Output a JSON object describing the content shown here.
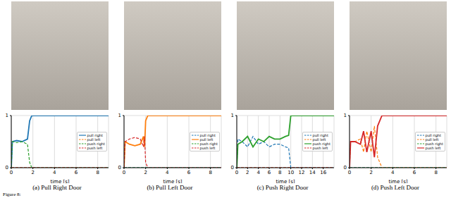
{
  "caption": "Figure 8:",
  "chart_data": [
    {
      "type": "line",
      "title": "(a) Pull Right Door",
      "x_label": "time [s]",
      "x": [
        0,
        0.1,
        0.5,
        1.0,
        1.5,
        1.7,
        1.9,
        2.5,
        9
      ],
      "series": [
        {
          "name": "pull right",
          "color": "#1f77b4",
          "line_style": "solid",
          "values": [
            0,
            0.5,
            0.52,
            0.5,
            0.55,
            0.9,
            1,
            1,
            1
          ]
        },
        {
          "name": "pull left",
          "color": "#ff7f0e",
          "line_style": "dashed",
          "values": [
            0,
            0,
            0,
            0,
            0,
            0,
            0,
            0,
            0
          ]
        },
        {
          "name": "push right",
          "color": "#2ca02c",
          "line_style": "dashed",
          "values": [
            0,
            0.5,
            0.48,
            0.5,
            0.45,
            0.1,
            0,
            0,
            0
          ]
        },
        {
          "name": "push left",
          "color": "#d62728",
          "line_style": "dashed",
          "values": [
            0,
            0,
            0,
            0,
            0,
            0,
            0,
            0,
            0
          ]
        }
      ],
      "xlim": [
        0,
        9
      ],
      "ylim": [
        0,
        1
      ],
      "xticks": [
        0,
        2,
        4,
        6,
        8
      ],
      "yticks": [
        0,
        1
      ],
      "grid": true,
      "legend": "right"
    },
    {
      "type": "line",
      "title": "(b) Pull Left Door",
      "x_label": "time [s]",
      "x": [
        0,
        0.1,
        0.5,
        1.0,
        1.5,
        1.8,
        1.9,
        2.0,
        2.2,
        9
      ],
      "series": [
        {
          "name": "pull right",
          "color": "#1f77b4",
          "line_style": "dashed",
          "values": [
            0,
            0,
            0,
            0,
            0,
            0,
            0,
            0,
            0,
            0
          ]
        },
        {
          "name": "pull left",
          "color": "#ff7f0e",
          "line_style": "solid",
          "values": [
            0,
            0.5,
            0.45,
            0.42,
            0.45,
            0.6,
            0.4,
            0.9,
            1,
            1
          ]
        },
        {
          "name": "push right",
          "color": "#2ca02c",
          "line_style": "dashed",
          "values": [
            0,
            0,
            0,
            0,
            0,
            0,
            0,
            0,
            0,
            0
          ]
        },
        {
          "name": "push left",
          "color": "#d62728",
          "line_style": "dashed",
          "values": [
            0,
            0.5,
            0.55,
            0.58,
            0.55,
            0.4,
            0.6,
            0.1,
            0,
            0
          ]
        }
      ],
      "xlim": [
        0,
        9
      ],
      "ylim": [
        0,
        1
      ],
      "xticks": [
        0,
        2,
        4,
        6,
        8
      ],
      "yticks": [
        0,
        1
      ],
      "grid": true,
      "legend": "right"
    },
    {
      "type": "line",
      "title": "(c) Push Right Door",
      "x_label": "time [s]",
      "x": [
        0,
        0.2,
        1,
        2,
        3,
        4,
        5,
        6,
        7,
        8,
        9,
        9.6,
        10,
        18
      ],
      "series": [
        {
          "name": "pull right",
          "color": "#1f77b4",
          "line_style": "dashed",
          "values": [
            0,
            0.55,
            0.5,
            0.4,
            0.6,
            0.45,
            0.5,
            0.4,
            0.45,
            0.45,
            0.4,
            0.38,
            0,
            0
          ]
        },
        {
          "name": "pull left",
          "color": "#ff7f0e",
          "line_style": "dashed",
          "values": [
            0,
            0,
            0,
            0,
            0,
            0,
            0,
            0,
            0,
            0,
            0,
            0,
            0,
            0
          ]
        },
        {
          "name": "push right",
          "color": "#2ca02c",
          "line_style": "solid",
          "values": [
            0,
            0.45,
            0.5,
            0.6,
            0.4,
            0.55,
            0.5,
            0.6,
            0.55,
            0.55,
            0.6,
            0.62,
            1,
            1
          ]
        },
        {
          "name": "push left",
          "color": "#d62728",
          "line_style": "dashed",
          "values": [
            0,
            0,
            0,
            0,
            0,
            0,
            0,
            0,
            0,
            0,
            0,
            0,
            0,
            0
          ]
        }
      ],
      "xlim": [
        0,
        18
      ],
      "ylim": [
        0,
        1
      ],
      "xticks": [
        0,
        2,
        4,
        6,
        8,
        10,
        12,
        14,
        16
      ],
      "yticks": [
        0,
        1
      ],
      "grid": true,
      "legend": "right"
    },
    {
      "type": "line",
      "title": "(d) Push Left Door",
      "x_label": "time [s]",
      "x": [
        0,
        0.1,
        0.5,
        1.0,
        1.3,
        1.6,
        2.0,
        2.3,
        2.6,
        3.0,
        9
      ],
      "series": [
        {
          "name": "pull right",
          "color": "#1f77b4",
          "line_style": "dashed",
          "values": [
            0,
            0,
            0,
            0,
            0,
            0,
            0,
            0,
            0,
            0,
            0
          ]
        },
        {
          "name": "pull left",
          "color": "#ff7f0e",
          "line_style": "dashed",
          "values": [
            0,
            0.5,
            0.5,
            0.55,
            0.3,
            0.7,
            0.3,
            0.8,
            0.2,
            0,
            0
          ]
        },
        {
          "name": "push right",
          "color": "#2ca02c",
          "line_style": "dashed",
          "values": [
            0,
            0,
            0,
            0,
            0,
            0,
            0,
            0,
            0,
            0,
            0
          ]
        },
        {
          "name": "push left",
          "color": "#d62728",
          "line_style": "solid",
          "values": [
            0,
            0.5,
            0.5,
            0.45,
            0.7,
            0.3,
            0.7,
            0.2,
            0.8,
            1,
            1
          ]
        }
      ],
      "xlim": [
        0,
        9
      ],
      "ylim": [
        0,
        1
      ],
      "xticks": [
        0,
        2,
        4,
        6,
        8
      ],
      "yticks": [
        0,
        1
      ],
      "grid": true,
      "legend": "right"
    }
  ]
}
